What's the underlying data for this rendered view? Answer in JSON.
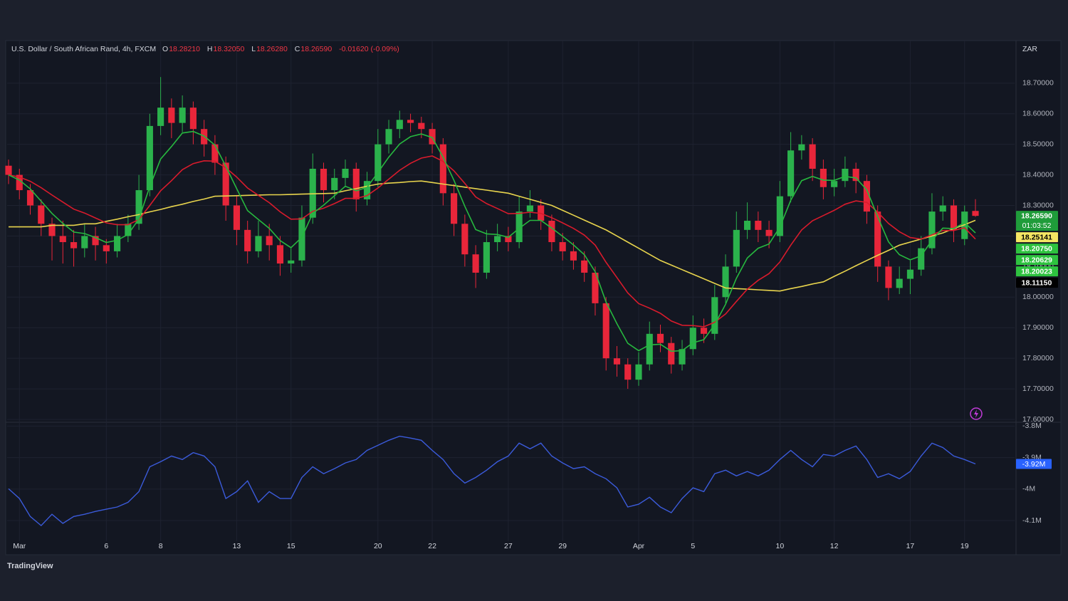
{
  "chart_data": {
    "type": "candlestick",
    "title": "U.S. Dollar / South African Rand, 4h, FXCM",
    "last_ohlc": {
      "letters": [
        "O",
        "H",
        "L",
        "C"
      ],
      "values": [
        18.2821,
        18.3205,
        18.2628,
        18.2659
      ],
      "value_labels": [
        "18.28210",
        "18.32050",
        "18.26280",
        "18.26590"
      ]
    },
    "change": {
      "value": -0.0162,
      "label": "-0.01620",
      "percent": -0.09,
      "percent_label": "(-0.09%)"
    },
    "currency": "ZAR",
    "countdown": "01:03:52",
    "brand": "TradingView",
    "up_color": "#2bb24c",
    "down_color": "#e8263a",
    "grid": true,
    "ylim": [
      17.6,
      18.83
    ],
    "yticks": [
      {
        "value": 17.6,
        "label": "17.60000"
      },
      {
        "value": 17.7,
        "label": "17.70000"
      },
      {
        "value": 17.8,
        "label": "17.80000"
      },
      {
        "value": 17.9,
        "label": "17.90000"
      },
      {
        "value": 18.0,
        "label": "18.00000"
      },
      {
        "value": 18.1,
        "label": "18.10000"
      },
      {
        "value": 18.2,
        "label": "18.20000"
      },
      {
        "value": 18.3,
        "label": "18.30000"
      },
      {
        "value": 18.4,
        "label": "18.40000"
      },
      {
        "value": 18.5,
        "label": "18.50000"
      },
      {
        "value": 18.6,
        "label": "18.60000"
      },
      {
        "value": 18.7,
        "label": "18.70000"
      }
    ],
    "categories": [
      null,
      "Mar",
      null,
      null,
      null,
      null,
      null,
      null,
      null,
      "6",
      null,
      null,
      null,
      null,
      "8",
      null,
      null,
      null,
      null,
      null,
      null,
      "13",
      null,
      null,
      null,
      null,
      "15",
      null,
      null,
      null,
      null,
      null,
      null,
      null,
      "20",
      null,
      null,
      null,
      null,
      "22",
      null,
      null,
      null,
      null,
      null,
      null,
      "27",
      null,
      null,
      null,
      null,
      "29",
      null,
      null,
      null,
      null,
      null,
      null,
      "Apr",
      null,
      null,
      null,
      null,
      "5",
      null,
      null,
      null,
      null,
      null,
      null,
      null,
      "10",
      null,
      null,
      null,
      null,
      "12",
      null,
      null,
      null,
      null,
      null,
      null,
      "17",
      null,
      null,
      null,
      null,
      "19",
      null
    ],
    "ohlc": [
      [
        18.43,
        18.45,
        18.37,
        18.4
      ],
      [
        18.4,
        18.42,
        18.32,
        18.35
      ],
      [
        18.35,
        18.37,
        18.27,
        18.3
      ],
      [
        18.3,
        18.32,
        18.2,
        18.24
      ],
      [
        18.24,
        18.26,
        18.12,
        18.2
      ],
      [
        18.2,
        18.25,
        18.11,
        18.18
      ],
      [
        18.18,
        18.22,
        18.1,
        18.16
      ],
      [
        18.16,
        18.24,
        18.13,
        18.2
      ],
      [
        18.2,
        18.23,
        18.12,
        18.17
      ],
      [
        18.17,
        18.19,
        18.11,
        18.15
      ],
      [
        18.15,
        18.24,
        18.13,
        18.2
      ],
      [
        18.2,
        18.27,
        18.18,
        18.24
      ],
      [
        18.24,
        18.4,
        18.22,
        18.35
      ],
      [
        18.35,
        18.6,
        18.33,
        18.56
      ],
      [
        18.56,
        18.72,
        18.53,
        18.62
      ],
      [
        18.62,
        18.65,
        18.52,
        18.57
      ],
      [
        18.57,
        18.66,
        18.54,
        18.62
      ],
      [
        18.62,
        18.64,
        18.5,
        18.55
      ],
      [
        18.55,
        18.58,
        18.46,
        18.5
      ],
      [
        18.5,
        18.53,
        18.4,
        18.44
      ],
      [
        18.44,
        18.46,
        18.25,
        18.3
      ],
      [
        18.3,
        18.33,
        18.17,
        18.22
      ],
      [
        18.22,
        18.25,
        18.11,
        18.15
      ],
      [
        18.15,
        18.25,
        18.13,
        18.2
      ],
      [
        18.2,
        18.24,
        18.12,
        18.17
      ],
      [
        18.17,
        18.2,
        18.07,
        18.11
      ],
      [
        18.11,
        18.16,
        18.08,
        18.12
      ],
      [
        18.12,
        18.3,
        18.1,
        18.26
      ],
      [
        18.26,
        18.47,
        18.24,
        18.42
      ],
      [
        18.42,
        18.44,
        18.31,
        18.35
      ],
      [
        18.35,
        18.42,
        18.32,
        18.39
      ],
      [
        18.39,
        18.45,
        18.36,
        18.42
      ],
      [
        18.42,
        18.44,
        18.28,
        18.32
      ],
      [
        18.32,
        18.41,
        18.3,
        18.38
      ],
      [
        18.38,
        18.55,
        18.36,
        18.5
      ],
      [
        18.5,
        18.58,
        18.47,
        18.55
      ],
      [
        18.55,
        18.61,
        18.52,
        18.58
      ],
      [
        18.58,
        18.6,
        18.54,
        18.57
      ],
      [
        18.57,
        18.59,
        18.52,
        18.55
      ],
      [
        18.55,
        18.57,
        18.47,
        18.5
      ],
      [
        18.5,
        18.52,
        18.3,
        18.34
      ],
      [
        18.34,
        18.37,
        18.2,
        18.24
      ],
      [
        18.24,
        18.27,
        18.1,
        18.14
      ],
      [
        18.14,
        18.17,
        18.03,
        18.08
      ],
      [
        18.08,
        18.22,
        18.06,
        18.18
      ],
      [
        18.18,
        18.24,
        18.15,
        18.2
      ],
      [
        18.2,
        18.23,
        18.15,
        18.18
      ],
      [
        18.18,
        18.33,
        18.16,
        18.28
      ],
      [
        18.28,
        18.35,
        18.26,
        18.3
      ],
      [
        18.3,
        18.32,
        18.22,
        18.25
      ],
      [
        18.25,
        18.27,
        18.15,
        18.18
      ],
      [
        18.18,
        18.21,
        18.12,
        18.15
      ],
      [
        18.15,
        18.18,
        18.09,
        18.12
      ],
      [
        18.12,
        18.15,
        18.05,
        18.08
      ],
      [
        18.08,
        18.1,
        17.94,
        17.98
      ],
      [
        17.98,
        18.0,
        17.76,
        17.8
      ],
      [
        17.8,
        17.84,
        17.74,
        17.78
      ],
      [
        17.78,
        17.8,
        17.7,
        17.73
      ],
      [
        17.73,
        17.82,
        17.71,
        17.78
      ],
      [
        17.78,
        17.92,
        17.76,
        17.88
      ],
      [
        17.88,
        17.91,
        17.82,
        17.85
      ],
      [
        17.85,
        17.87,
        17.75,
        17.78
      ],
      [
        17.78,
        17.86,
        17.76,
        17.83
      ],
      [
        17.83,
        17.94,
        17.81,
        17.9
      ],
      [
        17.9,
        17.93,
        17.85,
        17.88
      ],
      [
        17.88,
        18.04,
        17.86,
        18.0
      ],
      [
        18.0,
        18.14,
        17.98,
        18.1
      ],
      [
        18.1,
        18.28,
        18.08,
        18.22
      ],
      [
        18.22,
        18.31,
        18.19,
        18.25
      ],
      [
        18.25,
        18.28,
        18.18,
        18.22
      ],
      [
        18.22,
        18.25,
        18.16,
        18.2
      ],
      [
        18.2,
        18.38,
        18.18,
        18.33
      ],
      [
        18.33,
        18.54,
        18.31,
        18.48
      ],
      [
        18.48,
        18.53,
        18.45,
        18.5
      ],
      [
        18.5,
        18.52,
        18.38,
        18.42
      ],
      [
        18.42,
        18.45,
        18.32,
        18.36
      ],
      [
        18.36,
        18.42,
        18.33,
        18.38
      ],
      [
        18.38,
        18.46,
        18.36,
        18.42
      ],
      [
        18.42,
        18.44,
        18.34,
        18.38
      ],
      [
        18.38,
        18.4,
        18.24,
        18.28
      ],
      [
        18.28,
        18.3,
        18.05,
        18.1
      ],
      [
        18.1,
        18.12,
        17.99,
        18.03
      ],
      [
        18.03,
        18.1,
        18.01,
        18.06
      ],
      [
        18.06,
        18.12,
        18.01,
        18.09
      ],
      [
        18.09,
        18.2,
        18.07,
        18.16
      ],
      [
        18.16,
        18.34,
        18.14,
        18.28
      ],
      [
        18.28,
        18.33,
        18.25,
        18.3
      ],
      [
        18.3,
        18.32,
        18.18,
        18.22
      ],
      [
        18.19,
        18.3,
        18.17,
        18.28
      ],
      [
        18.2821,
        18.3205,
        18.2628,
        18.2659
      ]
    ],
    "series": [
      {
        "color": "#e8d44d",
        "values": [
          18.23,
          18.23,
          18.23,
          18.23,
          18.235,
          18.235,
          18.235,
          18.24,
          18.24,
          18.248,
          18.255,
          18.263,
          18.27,
          18.279,
          18.287,
          18.296,
          18.304,
          18.313,
          18.321,
          18.33,
          18.331,
          18.332,
          18.333,
          18.334,
          18.335,
          18.335,
          18.336,
          18.337,
          18.338,
          18.339,
          18.34,
          18.348,
          18.355,
          18.363,
          18.37,
          18.373,
          18.375,
          18.378,
          18.38,
          18.375,
          18.37,
          18.365,
          18.36,
          18.355,
          18.35,
          18.345,
          18.34,
          18.33,
          18.32,
          18.31,
          18.3,
          18.284,
          18.268,
          18.252,
          18.236,
          18.22,
          18.2,
          18.18,
          18.16,
          18.14,
          18.12,
          18.105,
          18.09,
          18.075,
          18.06,
          18.045,
          18.03,
          18.028,
          18.026,
          18.024,
          18.022,
          18.02,
          18.028,
          18.035,
          18.043,
          18.05,
          18.068,
          18.085,
          18.103,
          18.12,
          18.137,
          18.153,
          18.17,
          18.18,
          18.19,
          18.2,
          18.21,
          18.224,
          18.237,
          18.2514
        ]
      },
      {
        "color": "#d81b2c",
        "values": [
          18.4,
          18.393,
          18.379,
          18.358,
          18.334,
          18.311,
          18.288,
          18.275,
          18.259,
          18.243,
          18.237,
          18.237,
          18.254,
          18.3,
          18.348,
          18.381,
          18.417,
          18.437,
          18.446,
          18.445,
          18.423,
          18.393,
          18.357,
          18.333,
          18.309,
          18.279,
          18.255,
          18.256,
          18.281,
          18.291,
          18.306,
          18.323,
          18.323,
          18.332,
          18.357,
          18.386,
          18.415,
          18.438,
          18.455,
          18.462,
          18.444,
          18.413,
          18.372,
          18.328,
          18.306,
          18.29,
          18.273,
          18.274,
          18.278,
          18.274,
          18.26,
          18.243,
          18.225,
          18.203,
          18.17,
          18.114,
          18.064,
          18.014,
          17.979,
          17.964,
          17.947,
          17.922,
          17.908,
          17.907,
          17.903,
          17.918,
          17.945,
          17.986,
          18.026,
          18.055,
          18.077,
          18.115,
          18.17,
          18.22,
          18.25,
          18.267,
          18.284,
          18.304,
          18.315,
          18.31,
          18.278,
          18.241,
          18.214,
          18.195,
          18.19,
          18.204,
          18.218,
          18.218,
          18.227,
          18.19
        ]
      },
      {
        "color": "#27b83f",
        "values": [
          18.4,
          18.383,
          18.354,
          18.314,
          18.274,
          18.241,
          18.213,
          18.208,
          18.195,
          18.179,
          18.186,
          18.205,
          18.256,
          18.362,
          18.452,
          18.493,
          18.537,
          18.542,
          18.527,
          18.497,
          18.428,
          18.355,
          18.283,
          18.254,
          18.225,
          18.185,
          18.162,
          18.196,
          18.274,
          18.301,
          18.332,
          18.363,
          18.348,
          18.359,
          18.408,
          18.458,
          18.501,
          18.525,
          18.534,
          18.522,
          18.458,
          18.382,
          18.297,
          18.221,
          18.207,
          18.205,
          18.196,
          18.225,
          18.251,
          18.251,
          18.226,
          18.199,
          18.171,
          18.139,
          18.083,
          17.984,
          17.913,
          17.849,
          17.825,
          17.844,
          17.846,
          17.823,
          17.825,
          17.851,
          17.861,
          17.91,
          17.977,
          18.062,
          18.128,
          18.16,
          18.174,
          18.229,
          18.317,
          18.381,
          18.395,
          18.383,
          18.382,
          18.395,
          18.39,
          18.351,
          18.263,
          18.181,
          18.139,
          18.122,
          18.135,
          18.186,
          18.226,
          18.224,
          18.244,
          18.21
        ]
      }
    ],
    "price_badges": [
      {
        "value": 18.2659,
        "label": "18.26590",
        "color": "#1f9c3a",
        "text_color": "#ffffff"
      },
      {
        "value": 18.25141,
        "label": "18.25141",
        "color": "#f5e663",
        "text_color": "#000000"
      },
      {
        "value": 18.2075,
        "label": "18.20750",
        "color": "#2ec23f",
        "text_color": "#ffffff"
      },
      {
        "value": 18.20629,
        "label": "18.20629",
        "color": "#2ec23f",
        "text_color": "#ffffff"
      },
      {
        "value": 18.20023,
        "label": "18.20023",
        "color": "#2ec23f",
        "text_color": "#ffffff"
      },
      {
        "value": 18.1115,
        "label": "18.11150",
        "color": "#000000",
        "text_color": "#ffffff"
      }
    ],
    "indicator": {
      "color": "#3b5bdb",
      "ylim": [
        -4.17,
        -3.79
      ],
      "yticks": [
        {
          "value": -3.8,
          "label": "-3.8M"
        },
        {
          "value": -3.9,
          "label": "-3.9M"
        },
        {
          "value": -4.0,
          "label": "-4M"
        },
        {
          "value": -4.1,
          "label": "-4.1M"
        }
      ],
      "last_value": -3.92,
      "last_label": "-3.92M",
      "badge_color": "#2962ff",
      "values": [
        -3.999,
        -4.03,
        -4.087,
        -4.116,
        -4.08,
        -4.109,
        -4.087,
        -4.08,
        -4.071,
        -4.064,
        -4.057,
        -4.042,
        -4.008,
        -3.929,
        -3.913,
        -3.895,
        -3.906,
        -3.884,
        -3.895,
        -3.929,
        -4.03,
        -4.008,
        -3.974,
        -4.042,
        -4.008,
        -4.03,
        -4.03,
        -3.963,
        -3.929,
        -3.951,
        -3.935,
        -3.917,
        -3.906,
        -3.877,
        -3.861,
        -3.845,
        -3.832,
        -3.838,
        -3.845,
        -3.877,
        -3.906,
        -3.951,
        -3.981,
        -3.963,
        -3.94,
        -3.913,
        -3.895,
        -3.854,
        -3.872,
        -3.854,
        -3.895,
        -3.917,
        -3.935,
        -3.929,
        -3.951,
        -3.967,
        -3.996,
        -4.057,
        -4.048,
        -4.026,
        -4.057,
        -4.075,
        -4.03,
        -3.996,
        -4.008,
        -3.951,
        -3.94,
        -3.958,
        -3.944,
        -3.958,
        -3.94,
        -3.906,
        -3.877,
        -3.906,
        -3.929,
        -3.89,
        -3.895,
        -3.877,
        -3.863,
        -3.906,
        -3.963,
        -3.951,
        -3.967,
        -3.944,
        -3.895,
        -3.854,
        -3.868,
        -3.895,
        -3.906,
        -3.92
      ]
    }
  }
}
